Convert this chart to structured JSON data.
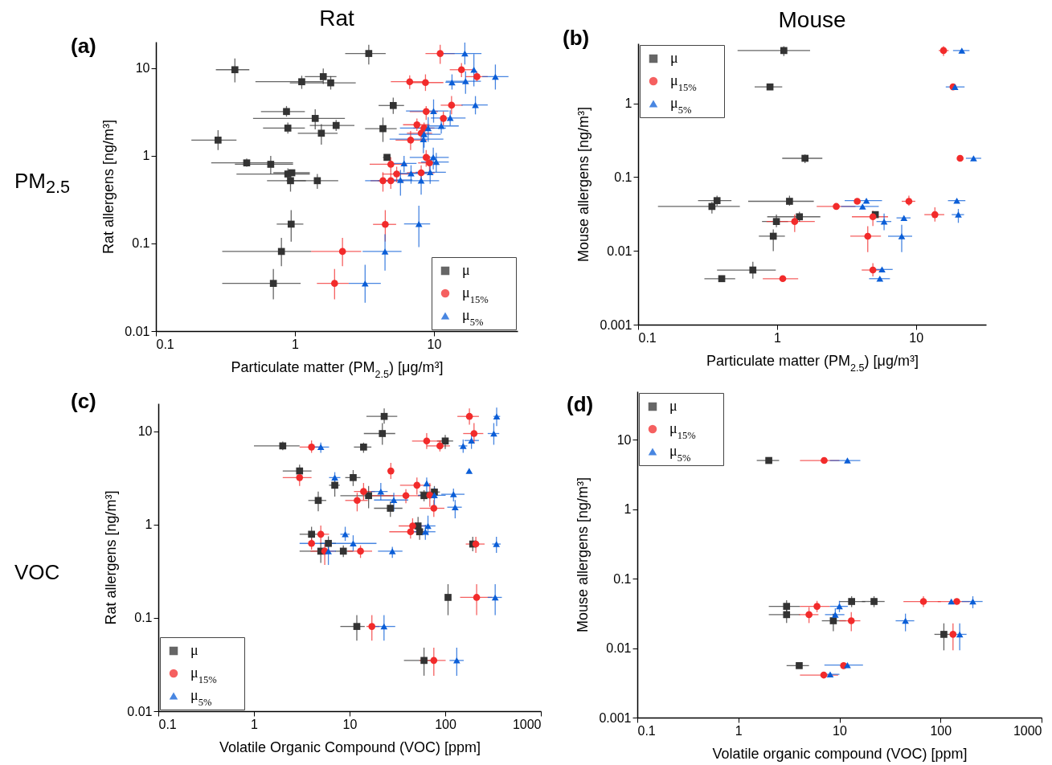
{
  "chart_data": [
    {
      "type": "scatter",
      "title": "Rat",
      "xlabel": "Particulate matter (PM$_{2.5}$) [μg/m³]",
      "ylabel": "Rat allergens [ng/m³]",
      "annotations": [
        "(a)",
        "PM$_{2.5}$"
      ],
      "log": "xy",
      "xlim": [
        0.1,
        40
      ],
      "ylim": [
        0.01,
        20
      ],
      "xticks": [
        0.1,
        1,
        10
      ],
      "yticks": [
        0.01,
        0.1,
        1,
        10
      ],
      "legend": "bottom right",
      "series": [
        {
          "name": "μ",
          "color": "#333333",
          "marker": "square",
          "x": [
            3.4,
            0.37,
            1.6,
            1.12,
            1.81,
            5.1,
            0.87,
            1.4,
            1.98,
            0.89,
            4.3,
            1.55,
            0.28,
            4.6,
            0.45,
            0.67,
            0.89,
            0.95,
            0.93,
            1.45,
            0.94,
            0.8,
            0.7
          ],
          "values": [
            14.7,
            9.6,
            8.0,
            7.0,
            6.8,
            3.75,
            3.2,
            2.67,
            2.22,
            2.07,
            2.04,
            1.81,
            1.51,
            0.96,
            0.83,
            0.8,
            0.62,
            0.64,
            0.52,
            0.52,
            0.166,
            0.081,
            0.035
          ],
          "xerrors": [
            [
              2.3,
              4.5
            ],
            [
              0.27,
              0.47
            ],
            [
              1.18,
              1.99
            ],
            [
              0.52,
              1.6
            ],
            [
              0.92,
              2.74
            ],
            [
              4.0,
              6.1
            ],
            [
              0.57,
              1.18
            ],
            [
              0.5,
              2.29
            ],
            [
              1.28,
              2.68
            ],
            [
              0.59,
              1.18
            ],
            [
              3.2,
              5.4
            ],
            [
              1.05,
              2.03
            ],
            [
              0.18,
              0.38
            ],
            [
              4.3,
              4.9
            ],
            [
              0.25,
              0.97
            ],
            [
              0.37,
              0.97
            ],
            [
              0.38,
              1.28
            ],
            [
              0.7,
              1.28
            ],
            [
              0.63,
              1.2
            ],
            [
              0.87,
              2.05
            ],
            [
              0.74,
              1.15
            ],
            [
              0.3,
              1.31
            ],
            [
              0.3,
              1.1
            ]
          ],
          "errors": [
            [
              11,
              18.5
            ],
            [
              6.9,
              12.9
            ],
            [
              6.6,
              9.9
            ],
            [
              5.8,
              8.2
            ],
            [
              5.7,
              8.1
            ],
            [
              3.0,
              4.6
            ],
            [
              2.8,
              3.7
            ],
            [
              2.0,
              3.4
            ],
            [
              1.92,
              2.57
            ],
            [
              1.79,
              2.4
            ],
            [
              1.44,
              2.73
            ],
            [
              1.34,
              2.3
            ],
            [
              1.16,
              1.96
            ],
            null,
            [
              0.75,
              0.93
            ],
            [
              0.62,
              1.0
            ],
            [
              0.56,
              0.72
            ],
            null,
            [
              0.39,
              0.52
            ],
            [
              0.42,
              0.62
            ],
            [
              0.105,
              0.24
            ],
            [
              0.055,
              0.116
            ],
            [
              0.023,
              0.051
            ]
          ]
        },
        {
          "name": "μ$_{15%}$",
          "color": "#f22b2b",
          "marker": "circle",
          "x": [
            11.1,
            15.8,
            20.4,
            6.7,
            8.7,
            13.4,
            8.8,
            11.7,
            7.55,
            8.5,
            8.1,
            6.8,
            8.8,
            9.3,
            4.9,
            5.4,
            8.1,
            4.3,
            4.9,
            4.47,
            2.2,
            1.93
          ],
          "values": [
            14.7,
            9.6,
            8.0,
            7.0,
            6.85,
            3.78,
            3.2,
            2.67,
            2.26,
            2.07,
            1.81,
            1.51,
            0.96,
            0.83,
            0.8,
            0.62,
            0.64,
            0.52,
            0.52,
            0.165,
            0.081,
            0.035
          ],
          "xerrors": [
            [
              8.7,
              14.1
            ],
            [
              13,
              19.2
            ],
            [
              16.9,
              24.4
            ],
            [
              4.9,
              8.9
            ],
            [
              6.7,
              11.7
            ],
            [
              11.2,
              16.1
            ],
            [
              6.7,
              10.7
            ],
            null,
            [
              6,
              9.3
            ],
            [
              7.1,
              10.1
            ],
            [
              6.4,
              9.7
            ],
            [
              5.3,
              8.9
            ],
            null,
            [
              7.7,
              10.7
            ],
            [
              3.45,
              6.4
            ],
            [
              4.25,
              7
            ],
            [
              6.4,
              10.1
            ],
            [
              3.5,
              5.3
            ],
            [
              3.95,
              6.1
            ],
            [
              3.65,
              5.35
            ],
            [
              1.31,
              3
            ],
            [
              1.44,
              2.44
            ]
          ],
          "errors": [
            [
              11.2,
              18.5
            ],
            [
              7.9,
              11.4
            ],
            [
              7.1,
              9.2
            ],
            [
              5.8,
              8.3
            ],
            [
              5.5,
              8.5
            ],
            [
              2.97,
              4.8
            ],
            [
              2.57,
              3.7
            ],
            [
              2.22,
              3.2
            ],
            [
              1.92,
              2.66
            ],
            [
              1.79,
              2.4
            ],
            [
              1.49,
              2.14
            ],
            [
              1.16,
              1.92
            ],
            [
              0.75,
              1.16
            ],
            [
              0.67,
              1.0
            ],
            [
              0.65,
              0.96
            ],
            [
              0.5,
              0.75
            ],
            [
              0.52,
              0.78
            ],
            [
              0.39,
              0.65
            ],
            [
              0.42,
              0.65
            ],
            [
              0.105,
              0.24
            ],
            [
              0.055,
              0.116
            ],
            [
              0.023,
              0.051
            ]
          ]
        },
        {
          "name": "μ$_{5%}$",
          "color": "#0b5ed7",
          "marker": "triangle",
          "x": [
            16.7,
            19.4,
            27.7,
            13.5,
            16.9,
            19.9,
            9.95,
            13.1,
            11.3,
            9.1,
            8.5,
            8.4,
            9.9,
            10.4,
            6.1,
            6.85,
            9.4,
            5.75,
            8.1,
            7.8,
            4.45,
            3.2
          ],
          "values": [
            14.7,
            9.6,
            8.0,
            6.9,
            7.1,
            3.8,
            3.24,
            2.7,
            2.19,
            2.07,
            1.76,
            1.55,
            0.96,
            0.85,
            0.82,
            0.63,
            0.65,
            0.53,
            0.52,
            0.167,
            0.081,
            0.035
          ],
          "xerrors": [
            [
              11.7,
              22
            ],
            null,
            [
              22.3,
              34.4
            ],
            [
              12.1,
              17.6
            ],
            [
              12.2,
              21.8
            ],
            [
              15.8,
              24.4
            ],
            [
              6.3,
              12.8
            ],
            [
              9.5,
              16.9
            ],
            [
              8.9,
              15.1
            ],
            [
              5.7,
              12.2
            ],
            [
              5.6,
              11.2
            ],
            [
              4.8,
              11.7
            ],
            [
              6.7,
              12.8
            ],
            [
              8.1,
              12.8
            ],
            [
              4.8,
              7.5
            ],
            [
              5.1,
              8.9
            ],
            [
              7.4,
              12.2
            ],
            [
              4.9,
              7
            ],
            [
              3.2,
              10.9
            ],
            [
              6.1,
              9.4
            ],
            [
              3.07,
              5.85
            ],
            [
              2.44,
              4.15
            ]
          ],
          "errors": [
            [
              11,
              19.6
            ],
            [
              6.2,
              14.5
            ],
            [
              5.7,
              11
            ],
            [
              5.7,
              8.5
            ],
            [
              5.1,
              9.2
            ],
            [
              2.97,
              4.8
            ],
            [
              2.39,
              4.4
            ],
            [
              2.22,
              3.3
            ],
            [
              1.79,
              2.76
            ],
            [
              1.44,
              2.76
            ],
            [
              1.24,
              2.22
            ],
            [
              1.07,
              2.07
            ],
            [
              0.7,
              1.24
            ],
            [
              0.65,
              1.08
            ],
            [
              0.65,
              1.0
            ],
            [
              0.48,
              0.78
            ],
            [
              0.48,
              0.86
            ],
            [
              0.35,
              0.69
            ],
            [
              0.36,
              0.65
            ],
            [
              0.091,
              0.27
            ],
            [
              0.049,
              0.127
            ],
            [
              0.021,
              0.057
            ]
          ]
        }
      ]
    },
    {
      "type": "scatter",
      "title": "Mouse",
      "xlabel": "Particulate matter (PM$_{2.5}$) [μg/m³]",
      "ylabel": "Mouse allergens [ng/m³]",
      "annotations": [
        "(b)"
      ],
      "log": "xy",
      "xlim": [
        0.1,
        32
      ],
      "ylim": [
        0.001,
        6.5
      ],
      "xticks": [
        0.1,
        1,
        10
      ],
      "yticks": [
        0.001,
        0.01,
        0.1,
        1
      ],
      "legend": "top left",
      "series": [
        {
          "name": "μ",
          "color": "#333333",
          "marker": "square",
          "x": [
            1.12,
            0.89,
            1.59,
            0.37,
            0.34,
            1.23,
            1.45,
            0.99,
            0.94,
            5.1,
            0.67,
            0.4
          ],
          "values": [
            5.2,
            1.67,
            0.18,
            0.048,
            0.04,
            0.047,
            0.029,
            0.025,
            0.0158,
            0.031,
            0.0055,
            0.0042
          ],
          "xerrors": [
            [
              0.52,
              1.73
            ],
            [
              0.69,
              1.09
            ],
            [
              1.09,
              2.12
            ],
            [
              0.27,
              0.47
            ],
            [
              0.139,
              0.54
            ],
            [
              0.62,
              1.84
            ],
            [
              0.85,
              2.05
            ],
            [
              0.78,
              1.2
            ],
            [
              0.74,
              1.14
            ],
            null,
            [
              0.37,
              0.98
            ],
            [
              0.3,
              0.5
            ]
          ],
          "errors": [
            [
              4.38,
              5.95
            ],
            null,
            [
              0.155,
              0.203
            ],
            [
              0.041,
              0.056
            ],
            [
              0.032,
              0.046
            ],
            [
              0.041,
              0.056
            ],
            [
              0.025,
              0.034
            ],
            [
              0.021,
              0.031
            ],
            [
              0.0099,
              0.0195
            ],
            null,
            [
              0.0042,
              0.0071
            ],
            null
          ]
        },
        {
          "name": "μ$_{15%}$",
          "color": "#f22b2b",
          "marker": "circle",
          "x": [
            15.8,
            18.5,
            20.8,
            3.78,
            2.67,
            8.9,
            13.7,
            4.9,
            1.34,
            4.5,
            4.9,
            1.1
          ],
          "values": [
            5.2,
            1.67,
            0.18,
            0.047,
            0.04,
            0.047,
            0.031,
            0.029,
            0.025,
            0.0158,
            0.0055,
            0.0042
          ],
          "xerrors": [
            [
              14.6,
              17.2
            ],
            null,
            null,
            null,
            [
              1.93,
              3.67
            ],
            [
              7.9,
              9.9
            ],
            [
              11.5,
              16
            ],
            [
              3.46,
              6.3
            ],
            [
              0.84,
              1.87
            ],
            [
              3.37,
              5.6
            ],
            [
              4.07,
              5.85
            ],
            [
              0.79,
              1.42
            ]
          ],
          "errors": [
            [
              4.38,
              5.95
            ],
            null,
            null,
            null,
            null,
            [
              0.041,
              0.056
            ],
            [
              0.025,
              0.039
            ],
            [
              0.0217,
              0.035
            ],
            [
              0.018,
              0.031
            ],
            [
              0.0096,
              0.0216
            ],
            [
              0.0045,
              0.0068
            ],
            null
          ]
        },
        {
          "name": "μ$_{5%}$",
          "color": "#0b5ed7",
          "marker": "triangle",
          "x": [
            21.4,
            19.1,
            26.0,
            4.4,
            4.13,
            19.7,
            20.2,
            8.2,
            5.9,
            7.9,
            5.7,
            5.5
          ],
          "values": [
            5.2,
            1.67,
            0.18,
            0.048,
            0.04,
            0.048,
            0.031,
            0.028,
            0.025,
            0.0158,
            0.0056,
            0.0042
          ],
          "xerrors": [
            [
              18.5,
              24.3
            ],
            [
              16.4,
              22.4
            ],
            [
              22.9,
              29.5
            ],
            [
              3.07,
              5.7
            ],
            [
              2.89,
              5.4
            ],
            [
              17,
              22.7
            ],
            [
              18.1,
              22.2
            ],
            [
              7.25,
              9.15
            ],
            [
              5.2,
              6.65
            ],
            [
              6.3,
              9.4
            ],
            [
              4.9,
              6.8
            ],
            [
              4.6,
              6.5
            ]
          ],
          "errors": [
            null,
            null,
            null,
            null,
            null,
            null,
            [
              0.024,
              0.037
            ],
            null,
            [
              0.019,
              0.032
            ],
            [
              0.0096,
              0.0226
            ],
            null,
            null
          ]
        }
      ]
    },
    {
      "type": "scatter",
      "xlabel": "Volatile Organic Compound (VOC) [ppm]",
      "ylabel": "Rat allergens [ng/m³]",
      "annotations": [
        "(c)",
        "VOC"
      ],
      "log": "xy",
      "xlim": [
        0.1,
        1000
      ],
      "ylim": [
        0.01,
        20
      ],
      "xticks": [
        0.1,
        1,
        10,
        100,
        1000
      ],
      "yticks": [
        0.01,
        0.1,
        1,
        10
      ],
      "legend": "bottom left",
      "series": [
        {
          "name": "μ",
          "color": "#333333",
          "marker": "square",
          "x": [
            23,
            22,
            2.0,
            14,
            100,
            3.0,
            10.9,
            7.0,
            15.8,
            60,
            77,
            4.7,
            26.7,
            52,
            54,
            4.0,
            6.0,
            5.0,
            8.6,
            194,
            107,
            11.9,
            60
          ],
          "values": [
            14.5,
            9.5,
            7.0,
            6.8,
            7.9,
            3.77,
            3.2,
            2.65,
            2.05,
            2.05,
            2.24,
            1.82,
            1.5,
            0.97,
            0.84,
            0.79,
            0.63,
            0.52,
            0.52,
            0.62,
            0.166,
            0.081,
            0.035
          ],
          "xerrors": [
            [
              15,
              31.5
            ],
            [
              14.1,
              30
            ],
            [
              1,
              3
            ],
            [
              11.1,
              16.9
            ],
            [
              82,
              121
            ],
            [
              2,
              4
            ],
            [
              9,
              13
            ],
            [
              6.1,
              7.9
            ],
            [
              8,
              29
            ],
            [
              52,
              71
            ],
            [
              54,
              88
            ],
            [
              3.7,
              5.7
            ],
            [
              18,
              35.7
            ],
            null,
            null,
            [
              3,
              4.9
            ],
            [
              4.9,
              7.2
            ],
            [
              3,
              5.0
            ],
            [
              7,
              10.9
            ],
            null,
            null,
            [
              8,
              14.4
            ],
            [
              37,
              82
            ]
          ],
          "errors": [
            [
              12.1,
              17.7
            ],
            [
              7.2,
              12.3
            ],
            [
              6.3,
              7.8
            ],
            [
              5.9,
              7.6
            ],
            [
              6.5,
              9.2
            ],
            [
              3.77,
              4.4
            ],
            [
              2.6,
              3.85
            ],
            [
              2.0,
              3.1
            ],
            [
              1.5,
              2.6
            ],
            [
              1.78,
              2.35
            ],
            [
              1.9,
              2.6
            ],
            [
              1.39,
              2.27
            ],
            [
              1.21,
              1.78
            ],
            [
              0.77,
              1.21
            ],
            [
              0.69,
              1.0
            ],
            [
              0.67,
              0.95
            ],
            [
              0.52,
              0.75
            ],
            [
              0.39,
              0.64
            ],
            [
              0.45,
              0.6
            ],
            [
              0.52,
              0.74
            ],
            [
              0.107,
              0.23
            ],
            [
              0.057,
              0.107
            ],
            [
              0.024,
              0.048
            ]
          ]
        },
        {
          "name": "μ$_{15%}$",
          "color": "#f22b2b",
          "marker": "circle",
          "x": [
            179,
            200,
            4.0,
            64,
            88,
            27,
            3.0,
            50.6,
            14,
            38.8,
            69,
            12.0,
            76,
            45.6,
            43.4,
            5.0,
            4.0,
            5.5,
            13.0,
            209,
            213,
            17.1,
            76
          ],
          "values": [
            14.5,
            9.5,
            6.8,
            7.9,
            7.0,
            3.77,
            3.2,
            2.65,
            2.27,
            2.05,
            2.07,
            1.82,
            1.5,
            0.97,
            0.84,
            0.79,
            0.63,
            0.52,
            0.52,
            0.62,
            0.166,
            0.081,
            0.035
          ],
          "xerrors": [
            [
              134,
              225
            ],
            [
              154,
              250
            ],
            [
              3,
              4.9
            ],
            [
              45,
              91
            ],
            [
              64,
              112
            ],
            [
              25,
              29
            ],
            [
              2,
              4
            ],
            [
              33.7,
              71
            ],
            [
              11.1,
              18.4
            ],
            [
              14.5,
              54
            ],
            [
              54,
              82
            ],
            [
              9,
              15.5
            ],
            [
              54,
              98
            ],
            [
              32.6,
              62
            ],
            [
              26,
              62
            ],
            [
              5.0,
              6.1
            ],
            null,
            [
              3.9,
              7
            ],
            [
              9.5,
              17.2
            ],
            [
              164,
              258
            ],
            [
              143,
              309
            ],
            [
              15,
              20.5
            ],
            [
              54,
              101
            ]
          ],
          "errors": [
            [
              11.8,
              17.7
            ],
            [
              7.5,
              12.3
            ],
            [
              5.9,
              8.0
            ],
            [
              6.5,
              9.6
            ],
            [
              6.1,
              8.0
            ],
            [
              3.1,
              4.6
            ],
            [
              2.6,
              4.0
            ],
            [
              2.1,
              3.2
            ],
            [
              1.84,
              2.8
            ],
            [
              1.7,
              2.4
            ],
            [
              1.55,
              2.8
            ],
            [
              1.39,
              2.2
            ],
            [
              1.21,
              1.84
            ],
            [
              0.79,
              1.17
            ],
            [
              0.71,
              0.98
            ],
            [
              0.64,
              0.98
            ],
            [
              0.54,
              0.71
            ],
            [
              0.37,
              0.62
            ],
            [
              0.44,
              0.6
            ],
            [
              0.5,
              0.74
            ],
            [
              0.107,
              0.23
            ],
            [
              0.057,
              0.107
            ],
            [
              0.024,
              0.048
            ]
          ]
        },
        {
          "name": "μ$_{5%}$",
          "color": "#0b5ed7",
          "marker": "triangle",
          "x": [
            345,
            322,
            5.0,
            188,
            154,
            178,
            7.0,
            21.2,
            29,
            64,
            77,
            122,
            127,
            66,
            62,
            9.0,
            10.9,
            6.0,
            28,
            343,
            333,
            22.9,
            132
          ],
          "values": [
            14.5,
            9.5,
            6.8,
            8.0,
            7.0,
            3.77,
            3.2,
            2.27,
            1.84,
            2.77,
            2.07,
            2.12,
            1.54,
            0.97,
            0.84,
            0.79,
            0.63,
            0.52,
            0.52,
            0.62,
            0.166,
            0.081,
            0.035
          ],
          "xerrors": [
            [
              320,
              375
            ],
            [
              278,
              367
            ],
            [
              4.1,
              6.1
            ],
            [
              159,
              225
            ],
            [
              138,
              170
            ],
            null,
            [
              6.1,
              8
            ],
            [
              16.8,
              25
            ],
            [
              18,
              41
            ],
            null,
            [
              52,
              101
            ],
            [
              91,
              159
            ],
            [
              105,
              149
            ],
            [
              48,
              79
            ],
            [
              45,
              79
            ],
            [
              8,
              10
            ],
            [
              3,
              19.1
            ],
            [
              5.1,
              7.2
            ],
            [
              19.8,
              35.7
            ],
            [
              310,
              380
            ],
            [
              278,
              391
            ],
            [
              18.4,
              30
            ],
            [
              111,
              156
            ]
          ],
          "errors": [
            [
              11.4,
              18
            ],
            [
              7.2,
              12.3
            ],
            [
              5.9,
              7.6
            ],
            [
              6.5,
              9.6
            ],
            [
              5.9,
              8.2
            ],
            null,
            [
              2.8,
              3.66
            ],
            [
              1.84,
              2.8
            ],
            [
              1.39,
              2.2
            ],
            [
              2.27,
              3.2
            ],
            [
              1.6,
              2.5
            ],
            [
              1.78,
              2.44
            ],
            [
              1.17,
              1.84
            ],
            [
              0.77,
              1.25
            ],
            [
              0.69,
              1.0
            ],
            [
              0.67,
              0.95
            ],
            [
              0.52,
              0.77
            ],
            [
              0.37,
              0.62
            ],
            [
              0.44,
              0.58
            ],
            [
              0.5,
              0.74
            ],
            [
              0.107,
              0.23
            ],
            [
              0.057,
              0.107
            ],
            [
              0.024,
              0.048
            ]
          ]
        }
      ]
    },
    {
      "type": "scatter",
      "xlabel": "Volatile organic compound (VOC) [ppm]",
      "ylabel": "Mouse allergens [ng/m³]",
      "annotations": [
        "(d)"
      ],
      "log": "xy",
      "xlim": [
        0.1,
        1000
      ],
      "ylim": [
        0.001,
        50
      ],
      "xticks": [
        0.1,
        1,
        10,
        100,
        1000
      ],
      "yticks": [
        0.001,
        0.01,
        0.1,
        1,
        10
      ],
      "legend": "top left",
      "series": [
        {
          "name": "μ",
          "color": "#333333",
          "marker": "square",
          "x": [
            2.0,
            3.0,
            3.0,
            13.2,
            22,
            8.7,
            108,
            4.0
          ],
          "values": [
            5.05,
            0.04,
            0.0304,
            0.047,
            0.047,
            0.0248,
            0.0158,
            0.0056
          ],
          "xerrors": [
            [
              1.52,
              2.53
            ],
            [
              2,
              4.07
            ],
            [
              2,
              4.07
            ],
            [
              10,
              18
            ],
            [
              16.7,
              28
            ],
            [
              6.7,
              11.6
            ],
            [
              87,
              135
            ],
            [
              3,
              5
            ]
          ],
          "errors": [
            null,
            [
              0.032,
              0.049
            ],
            [
              0.023,
              0.039
            ],
            [
              0.039,
              0.056
            ],
            [
              0.039,
              0.056
            ],
            [
              0.0175,
              0.0314
            ],
            [
              0.0093,
              0.0228
            ],
            null
          ]
        },
        {
          "name": "μ$_{15%}$",
          "color": "#f22b2b",
          "marker": "circle",
          "x": [
            7.06,
            6.0,
            5.0,
            67.8,
            145,
            13.1,
            133,
            11.0,
            7.0
          ],
          "values": [
            5.05,
            0.04,
            0.0304,
            0.047,
            0.047,
            0.0248,
            0.0158,
            0.0056,
            0.0041
          ],
          "xerrors": [
            [
              4.07,
              10
            ],
            [
              4.07,
              8.05
            ],
            [
              4,
              6.2
            ],
            [
              43,
              101
            ],
            [
              94,
              195
            ],
            [
              10,
              16.1
            ],
            null,
            null,
            [
              4.07,
              9.7
            ]
          ],
          "errors": [
            null,
            [
              0.033,
              0.048
            ],
            [
              0.023,
              0.039
            ],
            [
              0.039,
              0.056
            ],
            null,
            [
              0.0175,
              0.033
            ],
            [
              0.0093,
              0.0228
            ],
            null,
            null
          ]
        },
        {
          "name": "μ$_{5%}$",
          "color": "#0b5ed7",
          "marker": "triangle",
          "x": [
            12.0,
            10.0,
            9.1,
            128,
            209,
            45,
            155,
            12.0,
            8.1
          ],
          "values": [
            5.05,
            0.04,
            0.0304,
            0.047,
            0.047,
            0.0248,
            0.0158,
            0.0057,
            0.0042
          ],
          "xerrors": [
            [
              8.05,
              16.1
            ],
            [
              8.05,
              12.1
            ],
            [
              7.2,
              11.2
            ],
            null,
            [
              162,
              261
            ],
            [
              36,
              55
            ],
            [
              125,
              181
            ],
            [
              7.1,
              17.1
            ],
            [
              6.5,
              10
            ]
          ],
          "errors": [
            null,
            [
              0.033,
              0.048
            ],
            [
              0.023,
              0.0376
            ],
            null,
            [
              0.0376,
              0.056
            ],
            [
              0.0175,
              0.0314
            ],
            [
              0.0093,
              0.0228
            ],
            null,
            null
          ]
        }
      ]
    }
  ]
}
